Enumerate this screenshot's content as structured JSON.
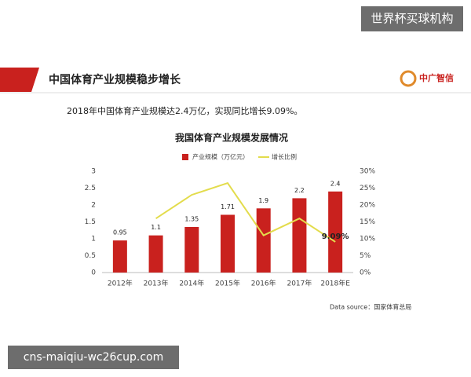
{
  "watermark_top": "世界杯买球机构",
  "watermark_bottom": "cns-maiqiu-wc26cup.com",
  "slide_title": "中国体育产业规模稳步增长",
  "logo": "中广智信",
  "summary": "2018年中国体育产业规模达2.4万亿，实现同比增长9.09%。",
  "source": "Data source：国家体育总局",
  "chart_data": {
    "type": "bar-line",
    "title": "我国体育产业规模发展情况",
    "categories": [
      "2012年",
      "2013年",
      "2014年",
      "2015年",
      "2016年",
      "2017年",
      "2018年E"
    ],
    "series": [
      {
        "name": "产业规模（万亿元）",
        "color": "#c9211e",
        "type": "bar",
        "values": [
          0.95,
          1.1,
          1.35,
          1.71,
          1.9,
          2.2,
          2.4
        ]
      },
      {
        "name": "增长比例",
        "color": "#e3dc4c",
        "type": "line",
        "axis": "y2",
        "values": [
          null,
          16,
          23,
          26.5,
          11,
          16,
          9.09
        ],
        "value_labels": [
          null,
          null,
          null,
          null,
          null,
          null,
          "9.09%"
        ]
      }
    ],
    "ylim": [
      0,
      3
    ],
    "yticks": [
      0,
      0.5,
      1,
      1.5,
      2,
      2.5,
      3
    ],
    "y2lim": [
      0,
      30
    ],
    "y2ticks": [
      {
        "value": 0,
        "label": "0%"
      },
      {
        "value": 5,
        "label": "5%"
      },
      {
        "value": 10,
        "label": "10%"
      },
      {
        "value": 15,
        "label": "15%"
      },
      {
        "value": 20,
        "label": "20%"
      },
      {
        "value": 25,
        "label": "25%"
      },
      {
        "value": 30,
        "label": "30%"
      }
    ],
    "grid": false
  }
}
